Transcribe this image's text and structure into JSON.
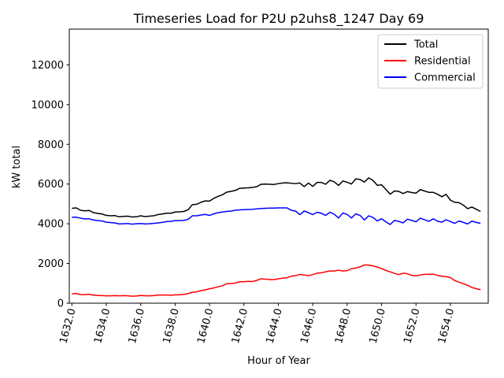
{
  "chart_data": {
    "type": "line",
    "title": "Timeseries Load for P2U p2uhs8_1247  Day 69",
    "xlabel": "Hour of Year",
    "ylabel": "kW total",
    "xlim": [
      1631.85,
      1656.2
    ],
    "ylim": [
      0,
      13800
    ],
    "xticks": [
      1632,
      1634,
      1636,
      1638,
      1640,
      1642,
      1644,
      1646,
      1648,
      1650,
      1652,
      1654
    ],
    "xtick_labels": [
      "1632.0",
      "1634.0",
      "1636.0",
      "1638.0",
      "1640.0",
      "1642.0",
      "1644.0",
      "1646.0",
      "1648.0",
      "1650.0",
      "1652.0",
      "1654.0"
    ],
    "yticks": [
      0,
      2000,
      4000,
      6000,
      8000,
      10000,
      12000
    ],
    "ytick_labels": [
      "0",
      "2000",
      "4000",
      "6000",
      "8000",
      "10000",
      "12000"
    ],
    "grid": false,
    "legend_position": "top-right",
    "x_start": 1632.0,
    "x_step": 0.25,
    "series": [
      {
        "name": "Total",
        "color": "#000000",
        "values": [
          4780,
          4800,
          4680,
          4650,
          4670,
          4560,
          4520,
          4490,
          4420,
          4400,
          4410,
          4350,
          4370,
          4380,
          4340,
          4350,
          4400,
          4360,
          4380,
          4400,
          4460,
          4490,
          4530,
          4530,
          4590,
          4600,
          4620,
          4700,
          4960,
          4980,
          5080,
          5150,
          5140,
          5280,
          5380,
          5460,
          5590,
          5630,
          5680,
          5780,
          5800,
          5810,
          5830,
          5870,
          5990,
          6000,
          5990,
          5980,
          6020,
          6050,
          6060,
          6040,
          6020,
          6050,
          5870,
          6050,
          5880,
          6080,
          6080,
          5990,
          6190,
          6110,
          5930,
          6150,
          6090,
          6000,
          6260,
          6230,
          6100,
          6310,
          6180,
          5940,
          5960,
          5730,
          5490,
          5650,
          5630,
          5520,
          5620,
          5570,
          5540,
          5720,
          5650,
          5580,
          5580,
          5490,
          5360,
          5480,
          5190,
          5080,
          5060,
          4940,
          4760,
          4840,
          4730,
          4620
        ]
      },
      {
        "name": "Residential",
        "color": "#ff0000",
        "values": [
          470,
          490,
          430,
          430,
          450,
          400,
          390,
          380,
          370,
          370,
          380,
          370,
          380,
          370,
          350,
          360,
          390,
          370,
          370,
          380,
          410,
          410,
          410,
          400,
          420,
          420,
          440,
          480,
          550,
          570,
          630,
          670,
          730,
          770,
          830,
          880,
          980,
          990,
          1010,
          1080,
          1080,
          1100,
          1090,
          1150,
          1230,
          1210,
          1190,
          1190,
          1230,
          1260,
          1280,
          1360,
          1390,
          1450,
          1420,
          1390,
          1440,
          1510,
          1530,
          1580,
          1620,
          1620,
          1660,
          1620,
          1640,
          1740,
          1770,
          1830,
          1930,
          1920,
          1880,
          1820,
          1740,
          1650,
          1580,
          1500,
          1440,
          1510,
          1480,
          1400,
          1380,
          1420,
          1450,
          1450,
          1460,
          1400,
          1360,
          1340,
          1290,
          1140,
          1060,
          980,
          900,
          790,
          730,
          680
        ]
      },
      {
        "name": "Commercial",
        "color": "#0000ff",
        "values": [
          4320,
          4330,
          4280,
          4250,
          4250,
          4190,
          4160,
          4140,
          4080,
          4060,
          4040,
          3990,
          4000,
          4010,
          3980,
          4000,
          4010,
          3990,
          4000,
          4020,
          4040,
          4070,
          4110,
          4120,
          4160,
          4160,
          4170,
          4220,
          4400,
          4400,
          4440,
          4470,
          4420,
          4500,
          4560,
          4590,
          4620,
          4640,
          4680,
          4700,
          4710,
          4720,
          4730,
          4750,
          4770,
          4780,
          4790,
          4790,
          4800,
          4800,
          4800,
          4680,
          4640,
          4460,
          4640,
          4560,
          4460,
          4580,
          4530,
          4420,
          4580,
          4480,
          4290,
          4540,
          4470,
          4290,
          4500,
          4420,
          4190,
          4400,
          4320,
          4140,
          4250,
          4100,
          3960,
          4170,
          4120,
          4040,
          4230,
          4170,
          4100,
          4280,
          4200,
          4120,
          4250,
          4130,
          4080,
          4200,
          4110,
          4020,
          4140,
          4070,
          3990,
          4130,
          4070,
          4020
        ]
      }
    ]
  }
}
